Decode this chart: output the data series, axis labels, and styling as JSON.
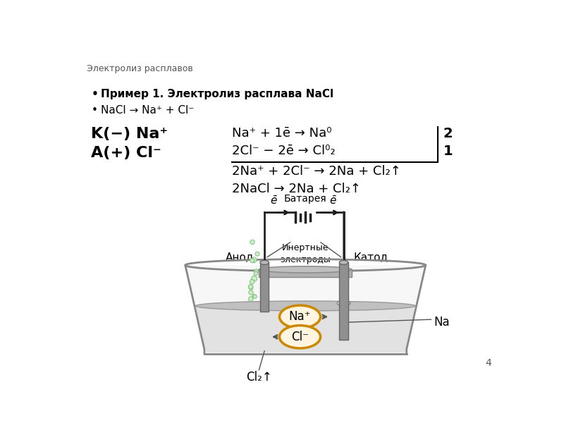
{
  "title": "Электролиз расплавов",
  "bullet1_bold": "Пример 1. Электролиз расплава NaCl",
  "bullet2": "NaCl → Na⁺ + Cl⁻",
  "left_label1": "K(−) Na⁺",
  "left_label2": "A(+) Cl⁻",
  "eq1": "Na⁺ + 1ē → Na⁰",
  "eq2": "2Cl⁻ − 2ē → Cl⁰₂",
  "eq3": "2Na⁺ + 2Cl⁻ → 2Na + Cl₂↑",
  "eq4": "2NaCl → 2Na + Cl₂↑",
  "coeff1": "2",
  "coeff2": "1",
  "label_battery": "Батарея",
  "label_inert": "Инертные\nэлектроды",
  "label_anode": "Анод",
  "label_cathode": "Катод",
  "label_na_plus": "Na⁺",
  "label_cl_minus": "Cl⁻",
  "label_na": "Na",
  "label_cl2": "Cl₂↑",
  "label_e_left": "ē",
  "label_e_right": "ē",
  "page_number": "4",
  "bg_color": "#ffffff",
  "liquid_color": "#d4d4d4",
  "electrode_color": "#909090",
  "ion_ring_color": "#cc8800",
  "wire_color": "#222222",
  "text_color": "#000000"
}
